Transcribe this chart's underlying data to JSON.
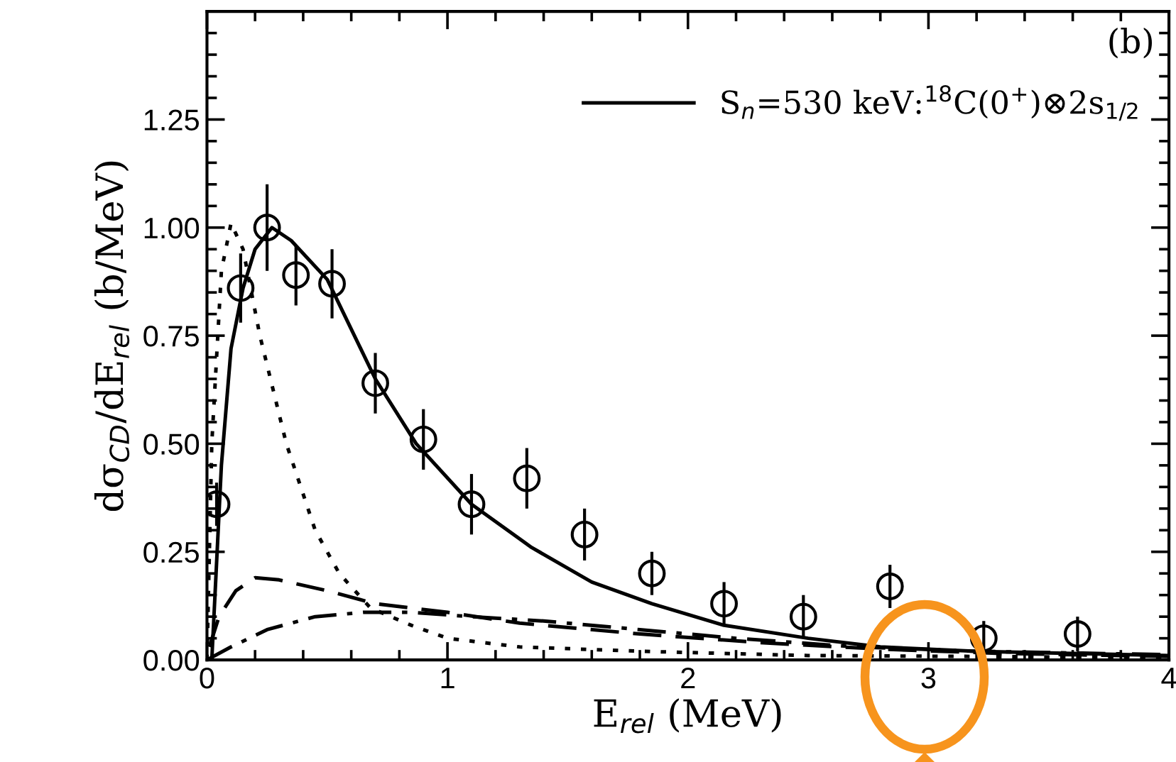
{
  "chart_data": {
    "type": "line",
    "xlabel": "E$_{rel}$ (MeV)",
    "ylabel": "dσ$_{CD}$/dE$_{rel}$ (b/MeV)",
    "annotations": [
      "(b)"
    ],
    "xlim": [
      0,
      4
    ],
    "xticks": [
      0,
      1,
      2,
      3,
      4
    ],
    "ylim": [
      0,
      1.5
    ],
    "yticks": [
      {
        "value": 0,
        "label": "0.00"
      },
      {
        "value": 0.25,
        "label": "0.25"
      },
      {
        "value": 0.5,
        "label": "0.50"
      },
      {
        "value": 0.75,
        "label": "0.75"
      },
      {
        "value": 1.0,
        "label": "1.00"
      },
      {
        "value": 1.25,
        "label": "1.25"
      }
    ],
    "grid": false,
    "legend": "top right",
    "series": [
      {
        "name": "S$_{n}$=530 keV:$^{18}$C(0$^{+}$)⊗2s$_{1/2}$",
        "line_style": "solid",
        "color": "#000000",
        "x": [
          0.02,
          0.06,
          0.1,
          0.15,
          0.2,
          0.27,
          0.35,
          0.5,
          0.7,
          0.87,
          1.1,
          1.35,
          1.6,
          1.85,
          2.15,
          2.5,
          2.8,
          3.2,
          3.6,
          4.0
        ],
        "values": [
          0.0,
          0.45,
          0.72,
          0.86,
          0.95,
          1.0,
          0.97,
          0.88,
          0.65,
          0.5,
          0.36,
          0.26,
          0.18,
          0.13,
          0.08,
          0.05,
          0.03,
          0.02,
          0.015,
          0.01
        ]
      },
      {
        "line_style": "dotted",
        "color": "#000000",
        "x": [
          0.0,
          0.02,
          0.06,
          0.1,
          0.15,
          0.22,
          0.33,
          0.45,
          0.55,
          0.68,
          0.85,
          1.0,
          1.3,
          1.8,
          2.5,
          3.2,
          4.0
        ],
        "values": [
          0.0,
          0.5,
          0.9,
          1.01,
          0.95,
          0.75,
          0.5,
          0.3,
          0.2,
          0.12,
          0.08,
          0.05,
          0.03,
          0.02,
          0.01,
          0.008,
          0.005
        ]
      },
      {
        "line_style": "dashed",
        "color": "#000000",
        "x": [
          0.01,
          0.05,
          0.12,
          0.2,
          0.3,
          0.5,
          0.7,
          1.0,
          1.3,
          1.8,
          2.3,
          2.8,
          3.3,
          4.0
        ],
        "values": [
          0.03,
          0.1,
          0.16,
          0.19,
          0.185,
          0.16,
          0.13,
          0.11,
          0.085,
          0.06,
          0.04,
          0.025,
          0.015,
          0.008
        ]
      },
      {
        "line_style": "dashdot",
        "color": "#000000",
        "x": [
          0.0,
          0.1,
          0.25,
          0.45,
          0.65,
          0.85,
          1.1,
          1.4,
          1.8,
          2.2,
          2.7,
          3.2,
          4.0
        ],
        "values": [
          0.0,
          0.03,
          0.07,
          0.1,
          0.11,
          0.11,
          0.1,
          0.09,
          0.07,
          0.05,
          0.03,
          0.02,
          0.012
        ]
      },
      {
        "type": "scatter",
        "marker": "circle",
        "color": "#000000",
        "x": [
          0.04,
          0.14,
          0.25,
          0.37,
          0.52,
          0.7,
          0.9,
          1.1,
          1.33,
          1.57,
          1.85,
          2.15,
          2.48,
          2.84,
          3.23,
          3.62
        ],
        "values": [
          0.36,
          0.86,
          1.0,
          0.89,
          0.87,
          0.64,
          0.51,
          0.36,
          0.42,
          0.29,
          0.2,
          0.13,
          0.1,
          0.17,
          0.05,
          0.06
        ],
        "errors": [
          0.05,
          0.08,
          0.1,
          0.07,
          0.08,
          0.07,
          0.07,
          0.07,
          0.07,
          0.06,
          0.05,
          0.05,
          0.05,
          0.05,
          0.04,
          0.04
        ]
      }
    ]
  }
}
